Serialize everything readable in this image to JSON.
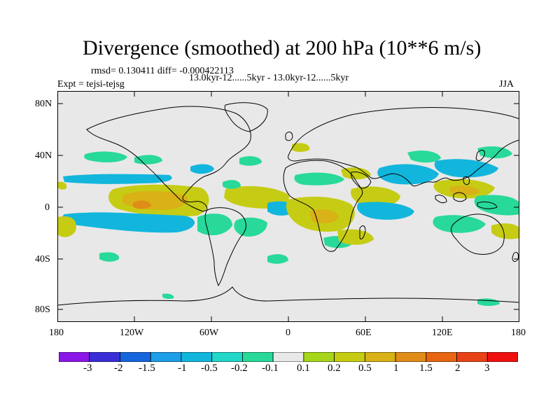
{
  "header": {
    "title": "Divergence (smoothed) at 200 hPa (10**6 m/s)",
    "stats": "rmsd= 0.130411 diff= -0.000422113",
    "experiment": "Expt = tejsi-tejsg",
    "period": "13.0kyr-12......5kyr - 13.0kyr-12......5kyr",
    "season": "JJA"
  },
  "axes": {
    "y_ticks": [
      "80N",
      "40N",
      "0",
      "40S",
      "80S"
    ],
    "x_ticks": [
      "180",
      "120W",
      "60W",
      "0",
      "60E",
      "120E",
      "180"
    ]
  },
  "colorbar": {
    "labels": [
      "-3",
      "-2",
      "-1.5",
      "-1",
      "-0.5",
      "-0.2",
      "-0.1",
      "0.1",
      "0.2",
      "0.5",
      "1",
      "1.5",
      "2",
      "3"
    ],
    "colors": [
      "#8a17e8",
      "#3a2ed6",
      "#1565dd",
      "#1c9ee8",
      "#12b6dc",
      "#22d6c8",
      "#28d99a",
      "#e8e8e8",
      "#a6d61a",
      "#c6cc14",
      "#d8b216",
      "#e08c18",
      "#e86512",
      "#e84318",
      "#f01010"
    ]
  },
  "palette": {
    "ocean": "#e8e8e8",
    "coast": "#000000"
  }
}
